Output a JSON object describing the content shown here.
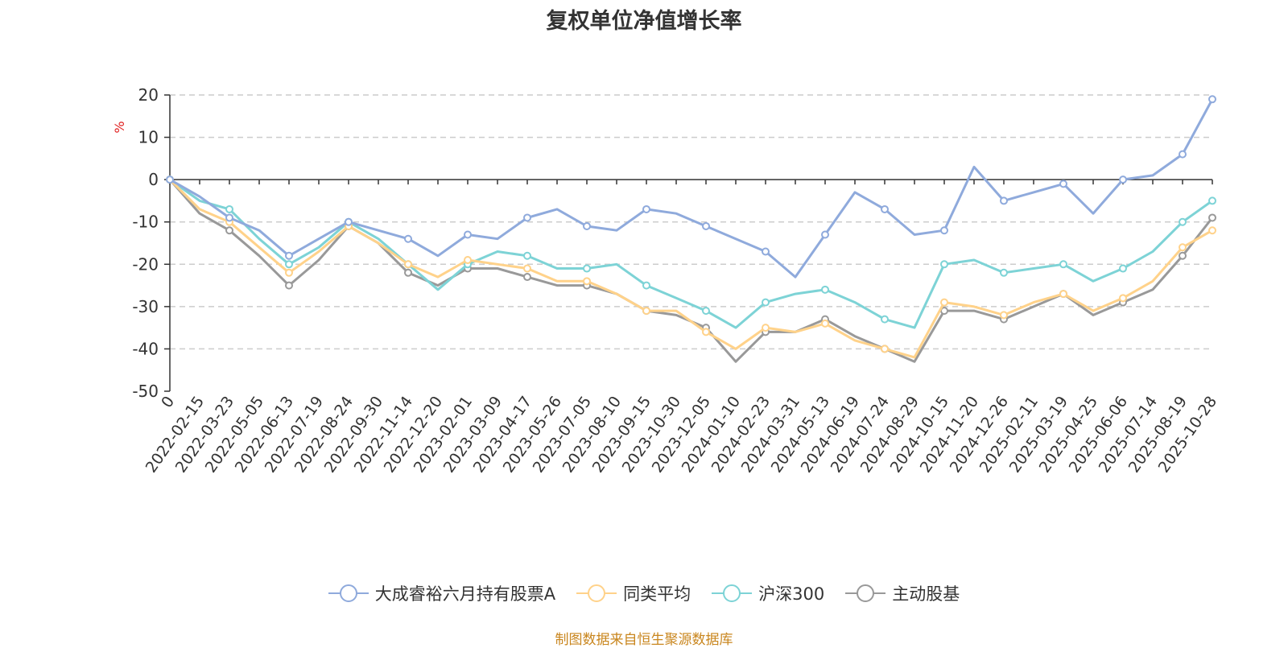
{
  "chart_data": {
    "type": "line",
    "title": "复权单位净值增长率",
    "ylabel": "%",
    "ylim": [
      -50,
      20
    ],
    "yticks": [
      20,
      10,
      0,
      -10,
      -20,
      -30,
      -40,
      -50
    ],
    "x_tick_labels": [
      "0",
      "2022-02-15",
      "2022-03-23",
      "2022-05-05",
      "2022-06-13",
      "2022-07-19",
      "2022-08-24",
      "2022-09-30",
      "2022-11-14",
      "2022-12-20",
      "2023-02-01",
      "2023-03-09",
      "2023-04-17",
      "2023-05-26",
      "2023-07-05",
      "2023-08-10",
      "2023-09-15",
      "2023-10-30",
      "2023-12-05",
      "2024-01-10",
      "2024-02-23",
      "2024-03-31",
      "2024-05-13",
      "2024-06-19",
      "2024-07-24",
      "2024-08-29",
      "2024-10-15",
      "2024-11-20",
      "2024-12-26",
      "2025-02-11",
      "2025-03-19",
      "2025-04-25",
      "2025-06-06",
      "2025-07-14",
      "2025-08-19",
      "2025-10-28"
    ],
    "grid": "dashed-horizontal",
    "legend_position": "bottom-center",
    "series": [
      {
        "name": "大成睿裕六月持有股票A",
        "color": "#8faadc",
        "values": [
          0,
          -4,
          -9,
          -12,
          -18,
          -14,
          -10,
          -12,
          -14,
          -18,
          -13,
          -14,
          -9,
          -7,
          -11,
          -12,
          -7,
          -8,
          -11,
          -14,
          -17,
          -23,
          -13,
          -3,
          -7,
          -13,
          -12,
          3,
          -5,
          -3,
          -1,
          -8,
          0,
          1,
          6,
          19
        ]
      },
      {
        "name": "同类平均",
        "color": "#ffd28a",
        "values": [
          0,
          -7,
          -10,
          -16,
          -22,
          -17,
          -11,
          -15,
          -20,
          -23,
          -19,
          -20,
          -21,
          -24,
          -24,
          -27,
          -31,
          -31,
          -36,
          -40,
          -35,
          -36,
          -34,
          -38,
          -40,
          -42,
          -29,
          -30,
          -32,
          -29,
          -27,
          -31,
          -28,
          -24,
          -16,
          -12
        ]
      },
      {
        "name": "沪深300",
        "color": "#7dd3d6",
        "values": [
          0,
          -5,
          -7,
          -14,
          -20,
          -16,
          -10,
          -14,
          -20,
          -26,
          -20,
          -17,
          -18,
          -21,
          -21,
          -20,
          -25,
          -28,
          -31,
          -35,
          -29,
          -27,
          -26,
          -29,
          -33,
          -35,
          -20,
          -19,
          -22,
          -21,
          -20,
          -24,
          -21,
          -17,
          -10,
          -5
        ]
      },
      {
        "name": "主动股基",
        "color": "#999999",
        "values": [
          0,
          -8,
          -12,
          -18,
          -25,
          -19,
          -11,
          -15,
          -22,
          -25,
          -21,
          -21,
          -23,
          -25,
          -25,
          -27,
          -31,
          -32,
          -35,
          -43,
          -36,
          -36,
          -33,
          -37,
          -40,
          -43,
          -31,
          -31,
          -33,
          -30,
          -27,
          -32,
          -29,
          -26,
          -18,
          -9
        ]
      }
    ]
  },
  "legend_items": [
    "大成睿裕六月持有股票A",
    "同类平均",
    "沪深300",
    "主动股基"
  ],
  "source_note": "制图数据来自恒生聚源数据库"
}
